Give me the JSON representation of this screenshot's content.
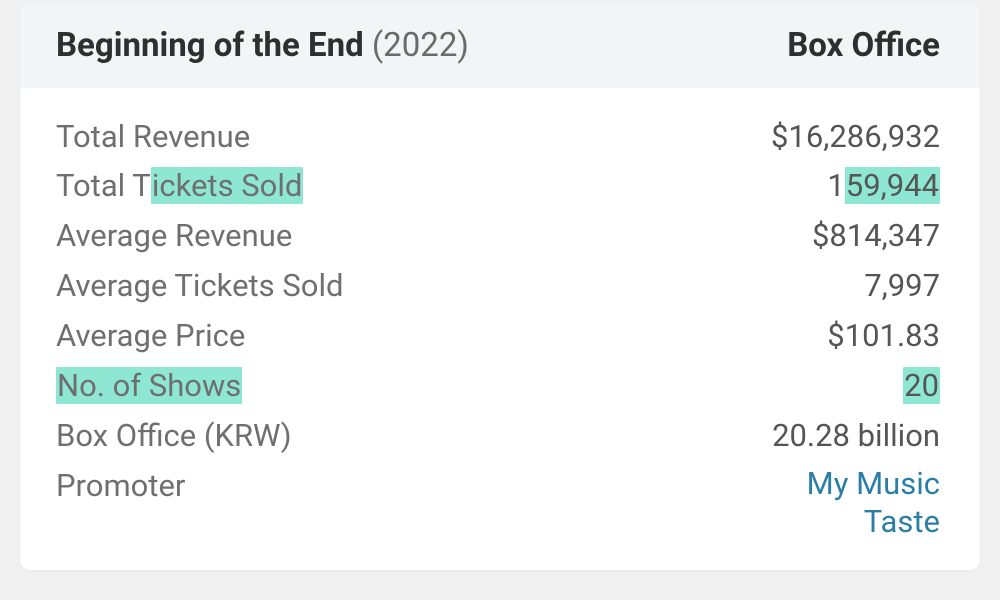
{
  "header": {
    "title": "Beginning of the End",
    "year": "(2022)",
    "right": "Box Office"
  },
  "rows": {
    "totalRevenue": {
      "label": "Total Revenue",
      "value": "$16,286,932"
    },
    "totalTickets": {
      "label_prefix": "Total T",
      "label_hl": "ickets Sold",
      "value_prefix": "1",
      "value_hl": "59,944"
    },
    "avgRevenue": {
      "label": "Average Revenue",
      "value": "$814,347"
    },
    "avgTickets": {
      "label": "Average Tickets Sold",
      "value": "7,997"
    },
    "avgPrice": {
      "label": "Average Price",
      "value": "$101.83"
    },
    "shows": {
      "label": "No. of Shows",
      "value": "20"
    },
    "krw": {
      "label": "Box Office (KRW)",
      "value": "20.28 billion"
    },
    "promoter": {
      "label": "Promoter",
      "value_line1": "My Music",
      "value_line2": "Taste"
    }
  },
  "colors": {
    "highlight": "#8de7d3",
    "link": "#2b7ea6",
    "label": "#6f6f6f",
    "value": "#555555",
    "headerBg": "#f3f4f5"
  }
}
